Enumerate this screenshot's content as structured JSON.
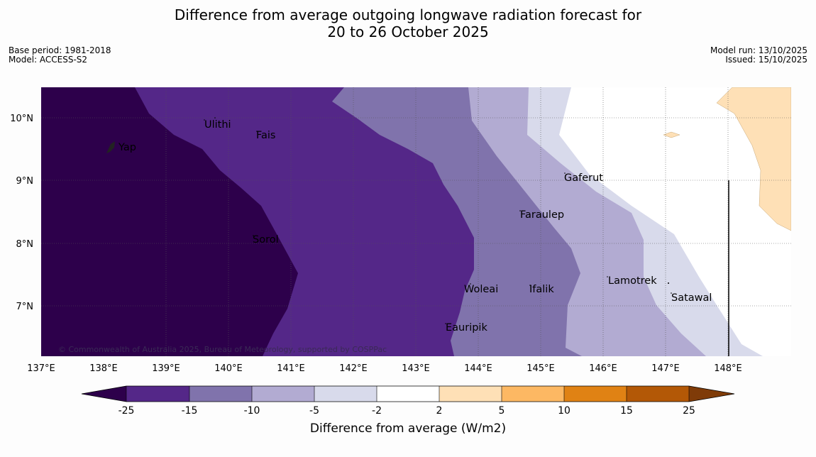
{
  "title_line1": "Difference from average outgoing longwave radiation forecast for",
  "title_line2": "20 to 26 October 2025",
  "base_period": "Base period: 1981-2018",
  "model": "Model: ACCESS-S2",
  "model_run": "Model run: 13/10/2025",
  "issued": "Issued: 15/10/2025",
  "copyright": "© Commonwealth of Australia 2025, Bureau of Meteorology, supported by COSPPac",
  "lon_ticks": [
    "137°E",
    "138°E",
    "139°E",
    "140°E",
    "141°E",
    "142°E",
    "143°E",
    "144°E",
    "145°E",
    "146°E",
    "147°E",
    "148°E"
  ],
  "lat_ticks": [
    "10°N",
    "9°N",
    "8°N",
    "7°N"
  ],
  "places": [
    "Yap",
    "Ulithi",
    "Fais",
    "Gaferut",
    "Faraulep",
    "Sorol",
    "Lamotrek",
    "Woleai",
    "Ifalik",
    "Satawal",
    "Eauripik"
  ],
  "colorbar": {
    "ticks": [
      "-25",
      "-15",
      "-10",
      "-5",
      "-2",
      "2",
      "5",
      "10",
      "15",
      "25"
    ],
    "colors": [
      "#2d004b",
      "#542788",
      "#8073ac",
      "#b2abd2",
      "#d8daeb",
      "#ffffff",
      "#fee0b6",
      "#fdb863",
      "#e08214",
      "#b35806",
      "#7f3b08"
    ],
    "label": "Difference from average (W/m2)"
  }
}
